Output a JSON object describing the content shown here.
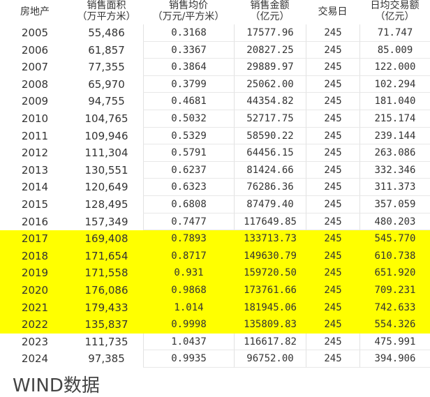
{
  "headers": [
    "房地产",
    "销售面积\n（万平方米）",
    "销售均价\n（万元/平方米）",
    "销售金额\n（亿元）",
    "交易日",
    "日均交易额\n（亿元）"
  ],
  "highlight_color": "#ffff00",
  "highlighted_years": [
    "2017",
    "2018",
    "2019",
    "2020",
    "2021",
    "2022"
  ],
  "rows": [
    [
      "2005",
      "55,486",
      "0.3168",
      "17577.96",
      "245",
      "71.747"
    ],
    [
      "2006",
      "61,857",
      "0.3367",
      "20827.25",
      "245",
      "85.009"
    ],
    [
      "2007",
      "77,355",
      "0.3864",
      "29889.97",
      "245",
      "122.000"
    ],
    [
      "2008",
      "65,970",
      "0.3799",
      "25062.00",
      "245",
      "102.294"
    ],
    [
      "2009",
      "94,755",
      "0.4681",
      "44354.82",
      "245",
      "181.040"
    ],
    [
      "2010",
      "104,765",
      "0.5032",
      "52717.75",
      "245",
      "215.174"
    ],
    [
      "2011",
      "109,946",
      "0.5329",
      "58590.22",
      "245",
      "239.144"
    ],
    [
      "2012",
      "111,304",
      "0.5791",
      "64456.15",
      "245",
      "263.086"
    ],
    [
      "2013",
      "130,551",
      "0.6237",
      "81424.66",
      "245",
      "332.346"
    ],
    [
      "2014",
      "120,649",
      "0.6323",
      "76286.36",
      "245",
      "311.373"
    ],
    [
      "2015",
      "128,495",
      "0.6808",
      "87479.40",
      "245",
      "357.059"
    ],
    [
      "2016",
      "157,349",
      "0.7477",
      "117649.85",
      "245",
      "480.203"
    ],
    [
      "2017",
      "169,408",
      "0.7893",
      "133713.73",
      "245",
      "545.770"
    ],
    [
      "2018",
      "171,654",
      "0.8717",
      "149630.79",
      "245",
      "610.738"
    ],
    [
      "2019",
      "171,558",
      "0.931",
      "159720.50",
      "245",
      "651.920"
    ],
    [
      "2020",
      "176,086",
      "0.9868",
      "173761.66",
      "245",
      "709.231"
    ],
    [
      "2021",
      "179,433",
      "1.014",
      "181945.06",
      "245",
      "742.633"
    ],
    [
      "2022",
      "135,837",
      "0.9998",
      "135809.83",
      "245",
      "554.326"
    ],
    [
      "2023",
      "111,735",
      "1.0437",
      "116617.82",
      "245",
      "475.991"
    ],
    [
      "2024",
      "97,385",
      "0.9935",
      "96752.00",
      "245",
      "394.906"
    ]
  ],
  "footer": "WIND数据"
}
